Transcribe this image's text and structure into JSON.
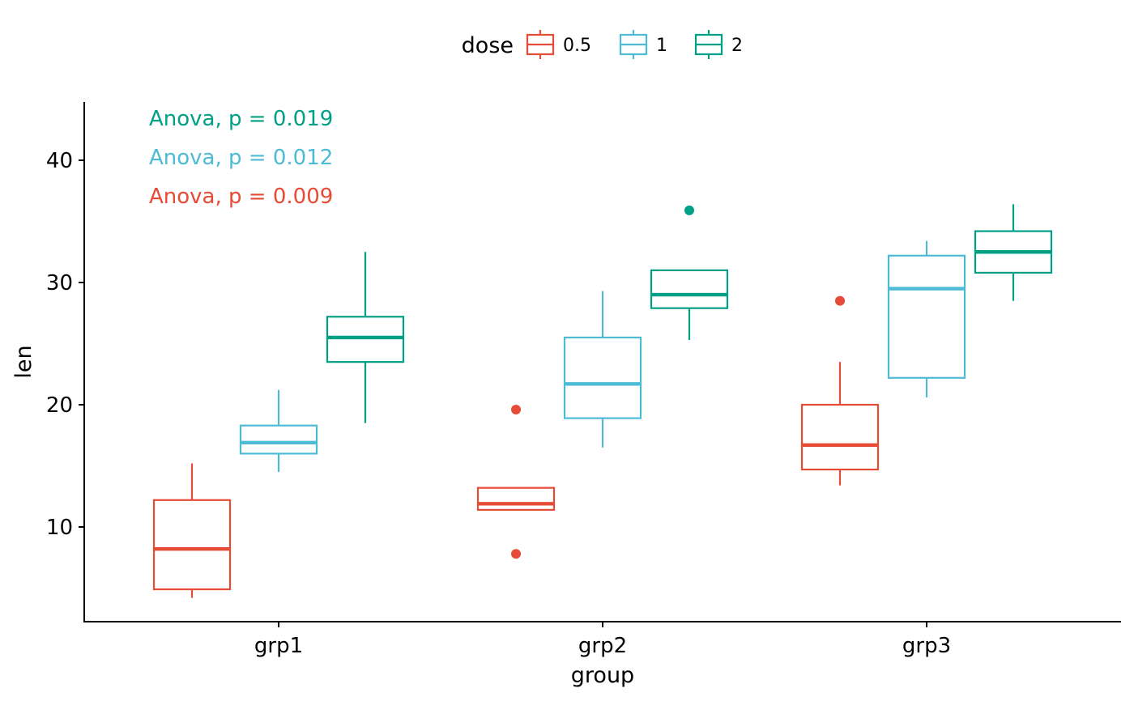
{
  "chart_data": {
    "type": "box",
    "xlabel": "group",
    "ylabel": "len",
    "categories": [
      "grp1",
      "grp2",
      "grp3"
    ],
    "ylim": [
      3.5,
      45
    ],
    "yticks": [
      10,
      20,
      30,
      40
    ],
    "grid": false,
    "legend": {
      "title": "dose",
      "position": "top",
      "items": [
        {
          "label": "0.5",
          "color": "#E64B35"
        },
        {
          "label": "1",
          "color": "#4DBBD5"
        },
        {
          "label": "2",
          "color": "#00A087"
        }
      ]
    },
    "series": [
      {
        "name": "0.5",
        "color": "#E64B35",
        "boxes": [
          {
            "category": "grp1",
            "whisker_low": 4.2,
            "q1": 4.9,
            "median": 8.2,
            "q3": 12.2,
            "whisker_high": 15.2,
            "outliers": []
          },
          {
            "category": "grp2",
            "whisker_low": 11.4,
            "q1": 11.4,
            "median": 11.9,
            "q3": 13.2,
            "whisker_high": 13.2,
            "outliers": [
              19.6,
              7.8
            ]
          },
          {
            "category": "grp3",
            "whisker_low": 13.4,
            "q1": 14.7,
            "median": 16.7,
            "q3": 20.0,
            "whisker_high": 23.5,
            "outliers": [
              28.5
            ]
          }
        ]
      },
      {
        "name": "1",
        "color": "#4DBBD5",
        "boxes": [
          {
            "category": "grp1",
            "whisker_low": 14.5,
            "q1": 16.0,
            "median": 16.9,
            "q3": 18.3,
            "whisker_high": 21.2,
            "outliers": []
          },
          {
            "category": "grp2",
            "whisker_low": 16.5,
            "q1": 18.9,
            "median": 21.7,
            "q3": 25.5,
            "whisker_high": 29.3,
            "outliers": []
          },
          {
            "category": "grp3",
            "whisker_low": 20.6,
            "q1": 22.2,
            "median": 29.5,
            "q3": 32.2,
            "whisker_high": 33.4,
            "outliers": []
          }
        ]
      },
      {
        "name": "2",
        "color": "#00A087",
        "boxes": [
          {
            "category": "grp1",
            "whisker_low": 18.5,
            "q1": 23.5,
            "median": 25.5,
            "q3": 27.2,
            "whisker_high": 32.5,
            "outliers": []
          },
          {
            "category": "grp2",
            "whisker_low": 25.3,
            "q1": 27.9,
            "median": 29.0,
            "q3": 31.0,
            "whisker_high": 31.0,
            "outliers": [
              35.9
            ]
          },
          {
            "category": "grp3",
            "whisker_low": 28.5,
            "q1": 30.8,
            "median": 32.5,
            "q3": 34.2,
            "whisker_high": 36.4,
            "outliers": []
          }
        ]
      }
    ],
    "annotations": [
      {
        "text": "Anova, p = 0.019",
        "color": "#00A087"
      },
      {
        "text": "Anova, p = 0.012",
        "color": "#4DBBD5"
      },
      {
        "text": "Anova, p = 0.009",
        "color": "#E64B35"
      }
    ]
  }
}
